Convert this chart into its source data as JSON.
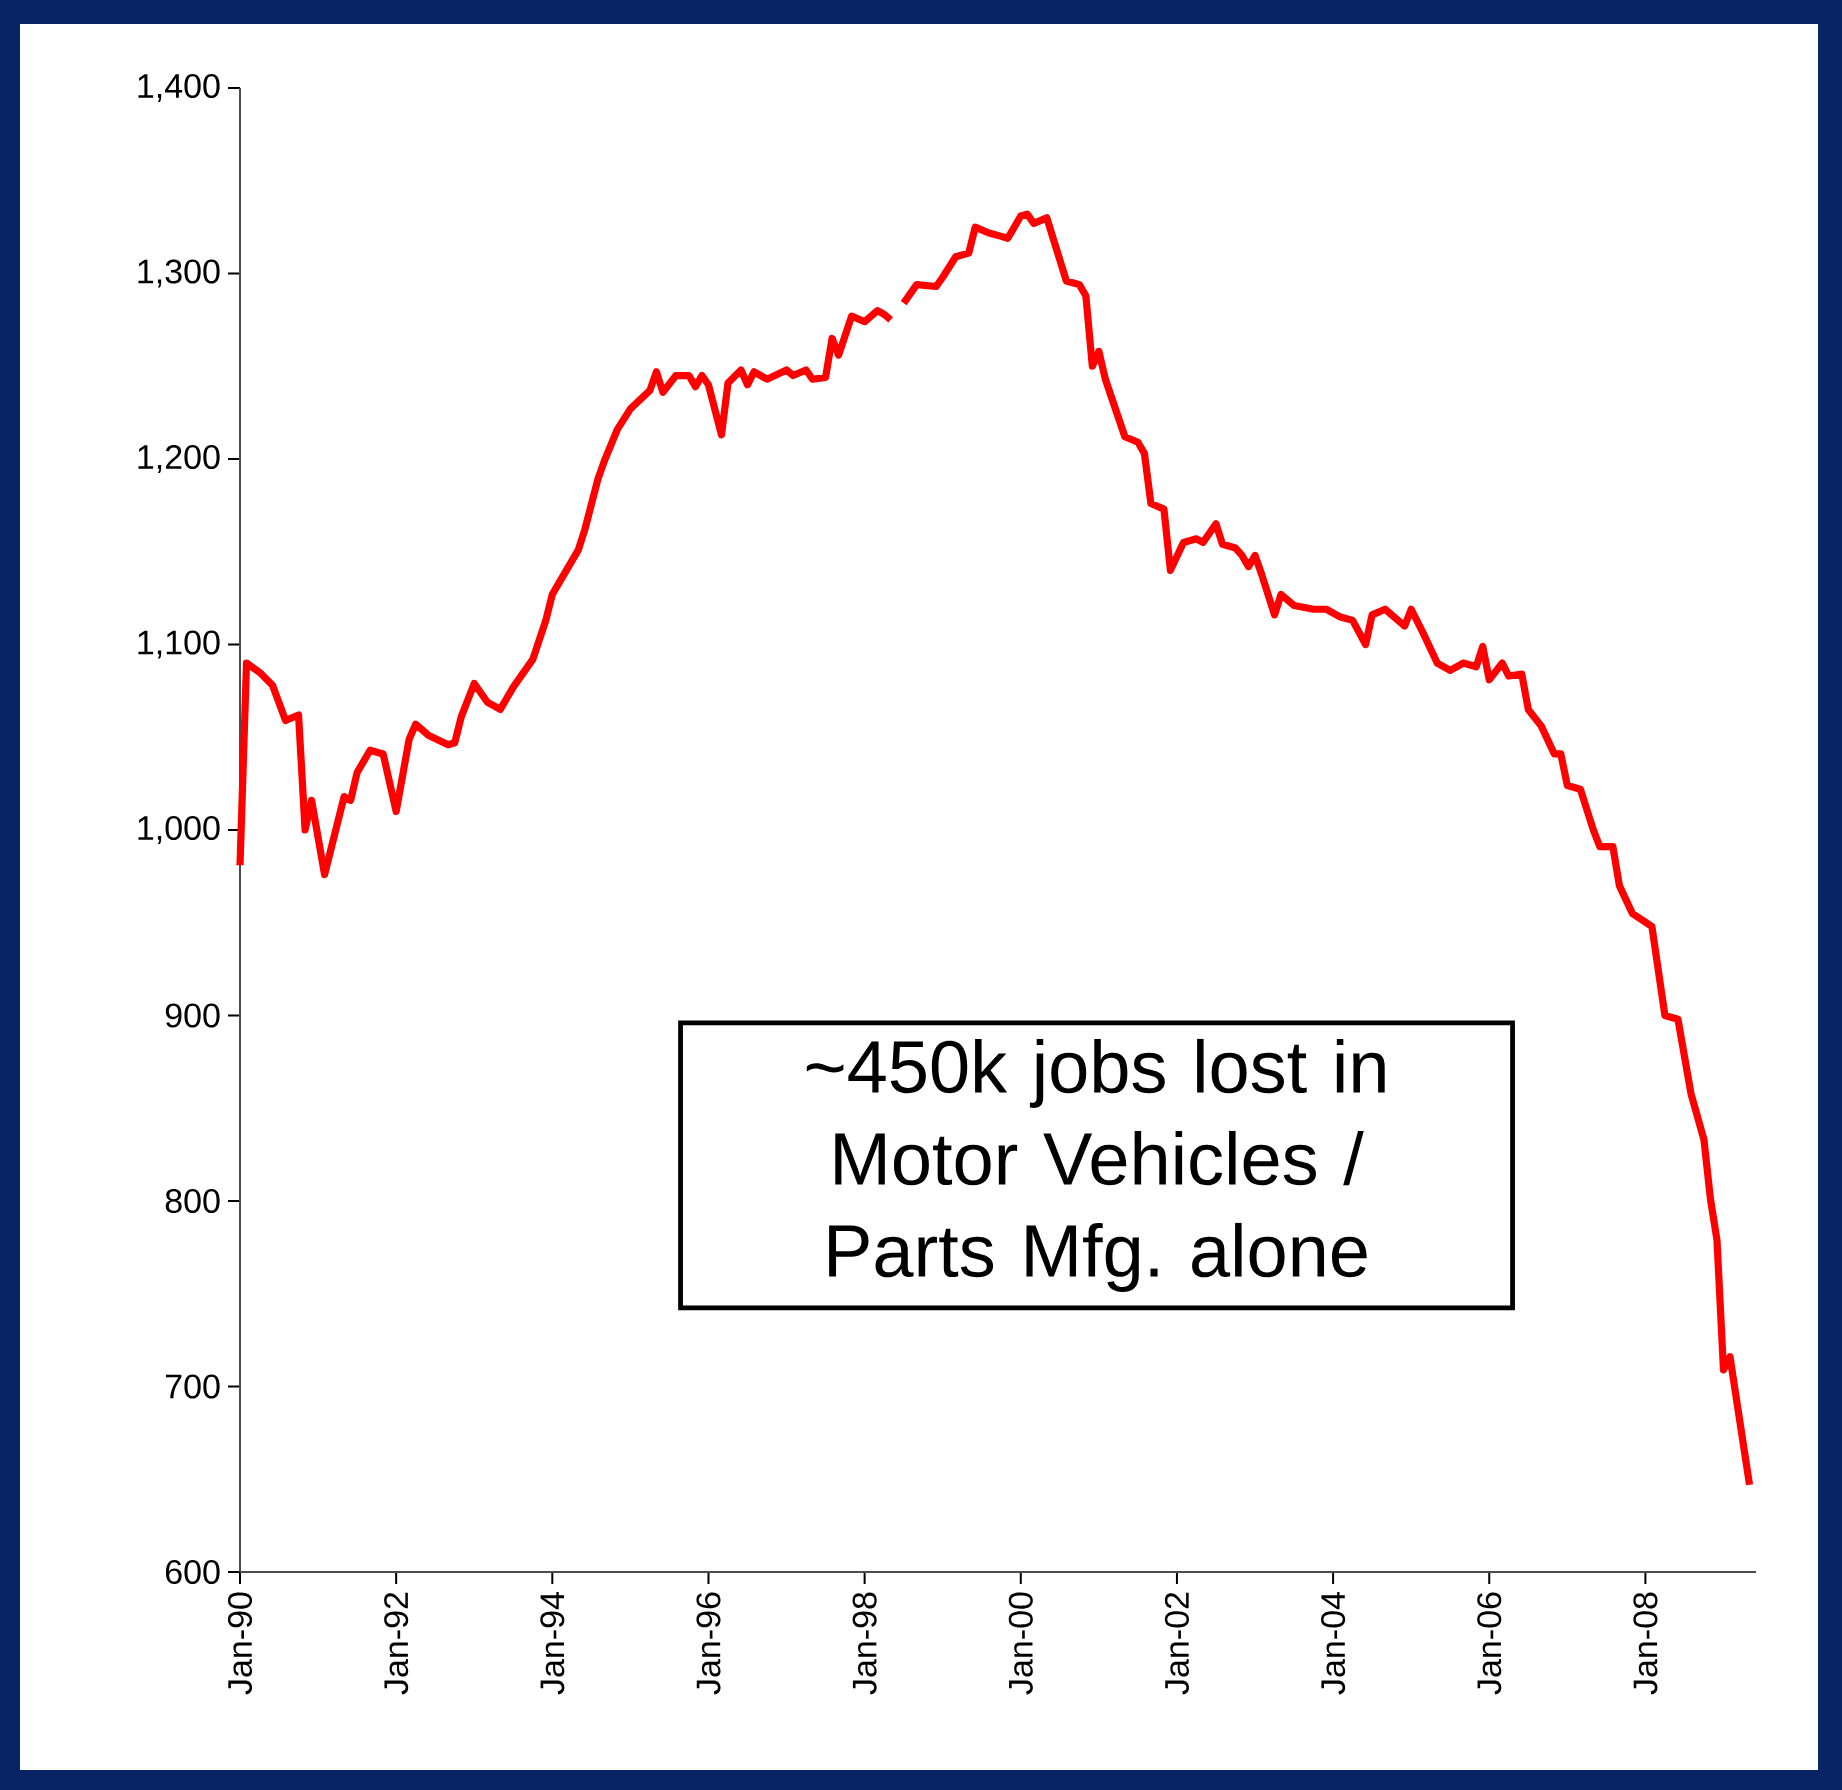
{
  "chart_data": {
    "type": "line",
    "x": [
      "1990-01",
      "1990-02",
      "1990-04",
      "1990-06",
      "1990-08",
      "1990-10",
      "1990-11",
      "1990-12",
      "1991-02",
      "1991-05",
      "1991-06",
      "1991-07",
      "1991-09",
      "1991-11",
      "1992-01",
      "1992-03",
      "1992-04",
      "1992-06",
      "1992-09",
      "1992-10",
      "1992-11",
      "1993-01",
      "1993-03",
      "1993-05",
      "1993-07",
      "1993-10",
      "1993-12",
      "1994-01",
      "1994-05",
      "1994-06",
      "1994-08",
      "1994-09",
      "1994-11",
      "1995-01",
      "1995-04",
      "1995-05",
      "1995-06",
      "1995-08",
      "1995-10",
      "1995-11",
      "1995-12",
      "1996-01",
      "1996-03",
      "1996-04",
      "1996-06",
      "1996-07",
      "1996-08",
      "1996-10",
      "1997-01",
      "1997-02",
      "1997-04",
      "1997-05",
      "1997-07",
      "1997-08",
      "1997-09",
      "1997-11",
      "1998-01",
      "1998-03",
      "1998-04",
      "1998-05",
      "1998-06",
      "1998-07",
      "1998-09",
      "1998-12",
      "1999-01",
      "1999-03",
      "1999-05",
      "1999-06",
      "1999-08",
      "1999-10",
      "1999-11",
      "2000-01",
      "2000-02",
      "2000-03",
      "2000-05",
      "2000-08",
      "2000-10",
      "2000-11",
      "2000-12",
      "2001-01",
      "2001-02",
      "2001-05",
      "2001-07",
      "2001-08",
      "2001-09",
      "2001-11",
      "2001-12",
      "2002-02",
      "2002-04",
      "2002-05",
      "2002-07",
      "2002-08",
      "2002-10",
      "2002-11",
      "2002-12",
      "2003-01",
      "2003-02",
      "2003-04",
      "2003-05",
      "2003-07",
      "2003-10",
      "2003-12",
      "2004-02",
      "2004-04",
      "2004-06",
      "2004-07",
      "2004-09",
      "2004-12",
      "2005-01",
      "2005-03",
      "2005-05",
      "2005-07",
      "2005-09",
      "2005-11",
      "2005-12",
      "2006-01",
      "2006-03",
      "2006-04",
      "2006-06",
      "2006-07",
      "2006-09",
      "2006-11",
      "2006-12",
      "2007-01",
      "2007-03",
      "2007-05",
      "2007-06",
      "2007-08",
      "2007-09",
      "2007-11",
      "2008-02",
      "2008-04",
      "2008-06",
      "2008-08",
      "2008-10",
      "2008-11",
      "2008-12",
      "2009-01",
      "2009-02",
      "2009-03",
      "2009-05"
    ],
    "series": [
      {
        "color": "#ff0000",
        "values": [
          981,
          1090,
          1085,
          1078,
          1059,
          1062,
          1000,
          1016,
          976,
          1018,
          1016,
          1031,
          1043,
          1041,
          1010,
          1049,
          1057,
          1051,
          1046,
          1047,
          1061,
          1079,
          1069,
          1065,
          1077,
          1092,
          1113,
          1127,
          1151,
          1162,
          1189,
          1199,
          1216,
          1227,
          1237,
          1247,
          1236,
          1245,
          1245,
          1239,
          1245,
          1240,
          1213,
          1241,
          1248,
          1240,
          1247,
          1243,
          1248,
          1245,
          1248,
          1243,
          1244,
          1265,
          1256,
          1277,
          1274,
          1280,
          1278,
          1275,
          null,
          1284,
          1294,
          1293,
          1298,
          1309,
          1311,
          1325,
          1322,
          1320,
          1319,
          1331,
          1332,
          1327,
          1330,
          1296,
          1294,
          1288,
          1250,
          1258,
          1243,
          1212,
          1209,
          1203,
          1176,
          1173,
          1140,
          1155,
          1157,
          1155,
          1165,
          1154,
          1152,
          1148,
          1142,
          1148,
          1138,
          1116,
          1127,
          1121,
          1119,
          1119,
          1115,
          1113,
          1100,
          1116,
          1119,
          1110,
          1119,
          1105,
          1090,
          1086,
          1090,
          1088,
          1099,
          1081,
          1090,
          1083,
          1084,
          1065,
          1056,
          1041,
          1041,
          1024,
          1022,
          1000,
          991,
          991,
          970,
          955,
          948,
          900,
          898,
          858,
          833,
          801,
          779,
          709,
          716,
          693,
          647
        ]
      }
    ],
    "xlim": [
      "1990-01",
      "2009-06"
    ],
    "xticks": [
      {
        "value": "1990-01",
        "label": "Jan-90"
      },
      {
        "value": "1992-01",
        "label": "Jan-92"
      },
      {
        "value": "1994-01",
        "label": "Jan-94"
      },
      {
        "value": "1996-01",
        "label": "Jan-96"
      },
      {
        "value": "1998-01",
        "label": "Jan-98"
      },
      {
        "value": "2000-01",
        "label": "Jan-00"
      },
      {
        "value": "2002-01",
        "label": "Jan-02"
      },
      {
        "value": "2004-01",
        "label": "Jan-04"
      },
      {
        "value": "2006-01",
        "label": "Jan-06"
      },
      {
        "value": "2008-01",
        "label": "Jan-08"
      }
    ],
    "ylim": [
      600,
      1400
    ],
    "yticks": [
      600,
      700,
      800,
      900,
      {
        "value": 1000,
        "label": "1,000"
      },
      {
        "value": 1100,
        "label": "1,100"
      },
      {
        "value": 1200,
        "label": "1,200"
      },
      {
        "value": 1300,
        "label": "1,300"
      },
      {
        "value": 1400,
        "label": "1,400"
      }
    ],
    "annotations": [
      "~450k jobs lost in Motor Vehicles / Parts Mfg. alone"
    ]
  }
}
